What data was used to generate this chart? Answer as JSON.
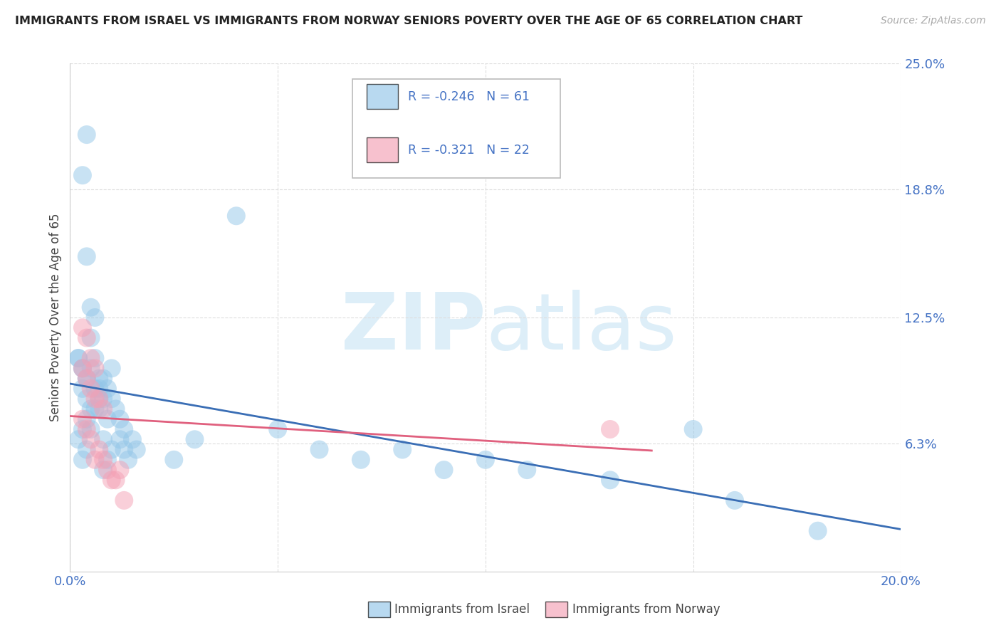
{
  "title": "IMMIGRANTS FROM ISRAEL VS IMMIGRANTS FROM NORWAY SENIORS POVERTY OVER THE AGE OF 65 CORRELATION CHART",
  "source": "Source: ZipAtlas.com",
  "ylabel": "Seniors Poverty Over the Age of 65",
  "legend_label_1": "Immigrants from Israel",
  "legend_label_2": "Immigrants from Norway",
  "legend_r1": "R = -0.246",
  "legend_n1": "N = 61",
  "legend_r2": "R = -0.321",
  "legend_n2": "N = 22",
  "color_israel": "#93c6e8",
  "color_norway": "#f4a0b5",
  "line_color_israel": "#3a6eb5",
  "line_color_norway": "#e0607e",
  "watermark_color": "#ddeef8",
  "title_color": "#222222",
  "source_color": "#aaaaaa",
  "axis_label_color": "#555555",
  "ytick_color": "#4472c4",
  "xtick_color": "#4472c4",
  "grid_color": "#dddddd",
  "xlim": [
    0.0,
    0.2
  ],
  "ylim": [
    0.0,
    0.25
  ],
  "ytick_vals": [
    0.063,
    0.125,
    0.188,
    0.25
  ],
  "ytick_labels": [
    "6.3%",
    "12.5%",
    "18.8%",
    "25.0%"
  ],
  "israel_x": [
    0.004,
    0.003,
    0.04,
    0.004,
    0.005,
    0.002,
    0.003,
    0.004,
    0.005,
    0.003,
    0.002,
    0.004,
    0.003,
    0.005,
    0.004,
    0.003,
    0.002,
    0.004,
    0.003,
    0.005,
    0.006,
    0.007,
    0.009,
    0.008,
    0.007,
    0.006,
    0.008,
    0.01,
    0.006,
    0.007,
    0.008,
    0.005,
    0.004,
    0.006,
    0.007,
    0.009,
    0.01,
    0.011,
    0.012,
    0.013,
    0.015,
    0.016,
    0.014,
    0.013,
    0.012,
    0.008,
    0.009,
    0.01,
    0.03,
    0.025,
    0.05,
    0.06,
    0.07,
    0.08,
    0.09,
    0.1,
    0.11,
    0.13,
    0.15,
    0.16,
    0.18
  ],
  "israel_y": [
    0.215,
    0.195,
    0.175,
    0.155,
    0.13,
    0.105,
    0.1,
    0.095,
    0.115,
    0.1,
    0.105,
    0.085,
    0.09,
    0.08,
    0.075,
    0.07,
    0.065,
    0.06,
    0.055,
    0.07,
    0.08,
    0.085,
    0.075,
    0.065,
    0.08,
    0.125,
    0.095,
    0.1,
    0.09,
    0.09,
    0.085,
    0.1,
    0.095,
    0.105,
    0.095,
    0.09,
    0.085,
    0.08,
    0.075,
    0.07,
    0.065,
    0.06,
    0.055,
    0.06,
    0.065,
    0.05,
    0.055,
    0.06,
    0.065,
    0.055,
    0.07,
    0.06,
    0.055,
    0.06,
    0.05,
    0.055,
    0.05,
    0.045,
    0.07,
    0.035,
    0.02
  ],
  "norway_x": [
    0.003,
    0.004,
    0.005,
    0.006,
    0.003,
    0.004,
    0.005,
    0.006,
    0.007,
    0.008,
    0.003,
    0.004,
    0.005,
    0.006,
    0.007,
    0.008,
    0.009,
    0.01,
    0.011,
    0.012,
    0.13,
    0.013
  ],
  "norway_y": [
    0.12,
    0.115,
    0.105,
    0.1,
    0.1,
    0.095,
    0.09,
    0.085,
    0.085,
    0.08,
    0.075,
    0.07,
    0.065,
    0.055,
    0.06,
    0.055,
    0.05,
    0.045,
    0.045,
    0.05,
    0.07,
    0.035
  ]
}
